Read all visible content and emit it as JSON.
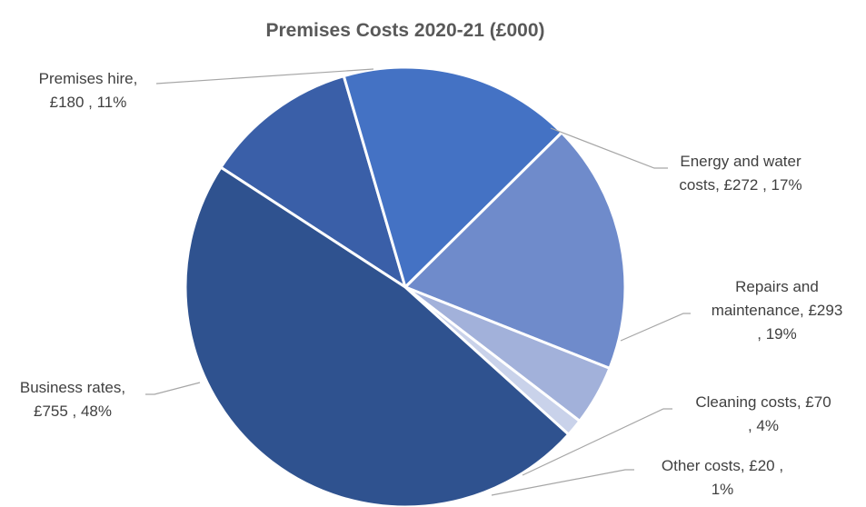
{
  "chart_data": {
    "type": "pie",
    "title": "Premises Costs 2020-21 (£000)",
    "slices": [
      {
        "category": "Premises hire",
        "value": 180,
        "value_label": "£180",
        "percent": 11,
        "percent_label": "11%",
        "label_lines": [
          "Premises hire,",
          "£180 , 11%"
        ],
        "color": "#3A5FA8"
      },
      {
        "category": "Energy and water costs",
        "value": 272,
        "value_label": "£272",
        "percent": 17,
        "percent_label": "17%",
        "label_lines": [
          "Energy and water",
          "costs,  £272 , 17%"
        ],
        "color": "#4472C4"
      },
      {
        "category": "Repairs and maintenance",
        "value": 293,
        "value_label": "£293",
        "percent": 19,
        "percent_label": "19%",
        "label_lines": [
          "Repairs and",
          "maintenance,  £293",
          ", 19%"
        ],
        "color": "#6F8BCB"
      },
      {
        "category": "Cleaning costs",
        "value": 70,
        "value_label": "£70",
        "percent": 4,
        "percent_label": "4%",
        "label_lines": [
          "Cleaning costs,  £70",
          ", 4%"
        ],
        "color": "#A2B1DA"
      },
      {
        "category": "Other costs",
        "value": 20,
        "value_label": "£20",
        "percent": 1,
        "percent_label": "1%",
        "label_lines": [
          "Other costs,  £20 ,",
          "1%"
        ],
        "color": "#C9D2EA"
      },
      {
        "category": "Business rates",
        "value": 755,
        "value_label": "£755",
        "percent": 48,
        "percent_label": "48%",
        "label_lines": [
          "Business rates,",
          "£755 , 48%"
        ],
        "color": "#2F528F"
      }
    ],
    "legend": "none"
  }
}
